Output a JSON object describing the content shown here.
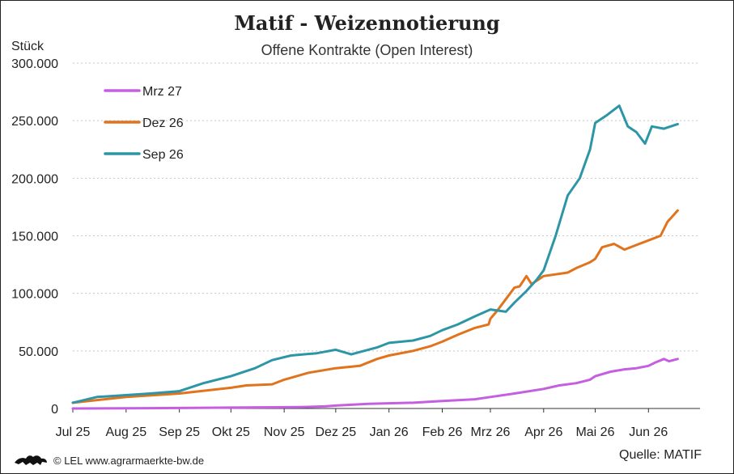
{
  "header": {
    "title": "Matif - Weizennotierung",
    "subtitle": "Offene Kontrakte (Open Interest)",
    "unit": "Stück"
  },
  "footer": {
    "credit": "© LEL www.agrarmaerkte-bw.de",
    "source": "Quelle:  MATIF",
    "logo_icon": "lion-coat-of-arms-icon"
  },
  "chart_data": {
    "type": "line",
    "ylabel": "Stück",
    "ylim": [
      0,
      300000
    ],
    "yticks": [
      0,
      50000,
      100000,
      150000,
      200000,
      250000,
      300000
    ],
    "ytick_labels": [
      "0",
      "50.000",
      "100.000",
      "150.000",
      "200.000",
      "250.000",
      "300.000"
    ],
    "xlim": [
      "2025-07-01",
      "2026-07-01"
    ],
    "xticks": [
      "2025-07-01",
      "2025-08-01",
      "2025-09-01",
      "2025-10-01",
      "2025-11-01",
      "2025-12-01",
      "2026-01-01",
      "2026-02-01",
      "2026-03-01",
      "2026-04-01",
      "2026-05-01",
      "2026-06-01"
    ],
    "xtick_labels": [
      "Jul 25",
      "Aug 25",
      "Sep 25",
      "Okt 25",
      "Nov 25",
      "Dez 25",
      "Jan 26",
      "Feb 26",
      "Mrz 26",
      "Apr 26",
      "Mai 26",
      "Jun 26"
    ],
    "grid": "horizontal dotted",
    "legend_position": "top-left",
    "series": [
      {
        "name": "Mrz 27",
        "color": "#c45fe0",
        "points": [
          [
            "2025-07-01",
            0
          ],
          [
            "2025-08-15",
            300
          ],
          [
            "2025-10-01",
            800
          ],
          [
            "2025-11-10",
            1200
          ],
          [
            "2025-11-25",
            1800
          ],
          [
            "2025-12-01",
            2500
          ],
          [
            "2025-12-20",
            4000
          ],
          [
            "2026-01-15",
            5000
          ],
          [
            "2026-02-01",
            6500
          ],
          [
            "2026-02-20",
            8000
          ],
          [
            "2026-03-01",
            10000
          ],
          [
            "2026-03-15",
            13000
          ],
          [
            "2026-04-01",
            17000
          ],
          [
            "2026-04-10",
            20000
          ],
          [
            "2026-04-20",
            22000
          ],
          [
            "2026-04-28",
            25000
          ],
          [
            "2026-05-01",
            28000
          ],
          [
            "2026-05-10",
            32000
          ],
          [
            "2026-05-18",
            34000
          ],
          [
            "2026-05-25",
            35000
          ],
          [
            "2026-06-01",
            37000
          ],
          [
            "2026-06-05",
            40000
          ],
          [
            "2026-06-10",
            43000
          ],
          [
            "2026-06-13",
            41000
          ],
          [
            "2026-06-18",
            43000
          ]
        ]
      },
      {
        "name": "Dez 26",
        "color": "#e0731c",
        "points": [
          [
            "2025-07-01",
            5000
          ],
          [
            "2025-08-01",
            10000
          ],
          [
            "2025-09-01",
            13000
          ],
          [
            "2025-10-01",
            18000
          ],
          [
            "2025-10-10",
            20000
          ],
          [
            "2025-10-25",
            21000
          ],
          [
            "2025-11-01",
            25000
          ],
          [
            "2025-11-15",
            31000
          ],
          [
            "2025-12-01",
            35000
          ],
          [
            "2025-12-15",
            37000
          ],
          [
            "2025-12-25",
            43000
          ],
          [
            "2026-01-01",
            46000
          ],
          [
            "2026-01-15",
            50000
          ],
          [
            "2026-01-25",
            54000
          ],
          [
            "2026-02-01",
            58000
          ],
          [
            "2026-02-10",
            64000
          ],
          [
            "2026-02-20",
            70000
          ],
          [
            "2026-02-28",
            73000
          ],
          [
            "2026-03-01",
            78000
          ],
          [
            "2026-03-05",
            85000
          ],
          [
            "2026-03-10",
            95000
          ],
          [
            "2026-03-15",
            105000
          ],
          [
            "2026-03-18",
            106000
          ],
          [
            "2026-03-22",
            115000
          ],
          [
            "2026-03-25",
            108000
          ],
          [
            "2026-04-01",
            115000
          ],
          [
            "2026-04-15",
            118000
          ],
          [
            "2026-04-20",
            122000
          ],
          [
            "2026-04-28",
            127000
          ],
          [
            "2026-05-01",
            130000
          ],
          [
            "2026-05-05",
            140000
          ],
          [
            "2026-05-12",
            143000
          ],
          [
            "2026-05-18",
            138000
          ],
          [
            "2026-05-25",
            142000
          ],
          [
            "2026-06-01",
            146000
          ],
          [
            "2026-06-08",
            150000
          ],
          [
            "2026-06-12",
            162000
          ],
          [
            "2026-06-18",
            172000
          ]
        ]
      },
      {
        "name": "Sep 26",
        "color": "#2d96a6",
        "points": [
          [
            "2025-07-01",
            5000
          ],
          [
            "2025-07-15",
            10000
          ],
          [
            "2025-08-15",
            13000
          ],
          [
            "2025-09-01",
            15000
          ],
          [
            "2025-09-15",
            22000
          ],
          [
            "2025-10-01",
            28000
          ],
          [
            "2025-10-15",
            35000
          ],
          [
            "2025-10-25",
            42000
          ],
          [
            "2025-11-05",
            46000
          ],
          [
            "2025-11-20",
            48000
          ],
          [
            "2025-12-01",
            51000
          ],
          [
            "2025-12-10",
            47000
          ],
          [
            "2025-12-25",
            53000
          ],
          [
            "2026-01-01",
            57000
          ],
          [
            "2026-01-15",
            59000
          ],
          [
            "2026-01-25",
            63000
          ],
          [
            "2026-02-01",
            68000
          ],
          [
            "2026-02-10",
            73000
          ],
          [
            "2026-02-20",
            80000
          ],
          [
            "2026-03-01",
            86000
          ],
          [
            "2026-03-10",
            84000
          ],
          [
            "2026-03-15",
            92000
          ],
          [
            "2026-03-22",
            102000
          ],
          [
            "2026-03-28",
            112000
          ],
          [
            "2026-04-01",
            120000
          ],
          [
            "2026-04-08",
            150000
          ],
          [
            "2026-04-15",
            185000
          ],
          [
            "2026-04-22",
            200000
          ],
          [
            "2026-04-28",
            225000
          ],
          [
            "2026-05-01",
            248000
          ],
          [
            "2026-05-08",
            255000
          ],
          [
            "2026-05-15",
            263000
          ],
          [
            "2026-05-20",
            245000
          ],
          [
            "2026-05-25",
            240000
          ],
          [
            "2026-05-30",
            230000
          ],
          [
            "2026-06-03",
            245000
          ],
          [
            "2026-06-10",
            243000
          ],
          [
            "2026-06-18",
            247000
          ]
        ]
      }
    ]
  }
}
